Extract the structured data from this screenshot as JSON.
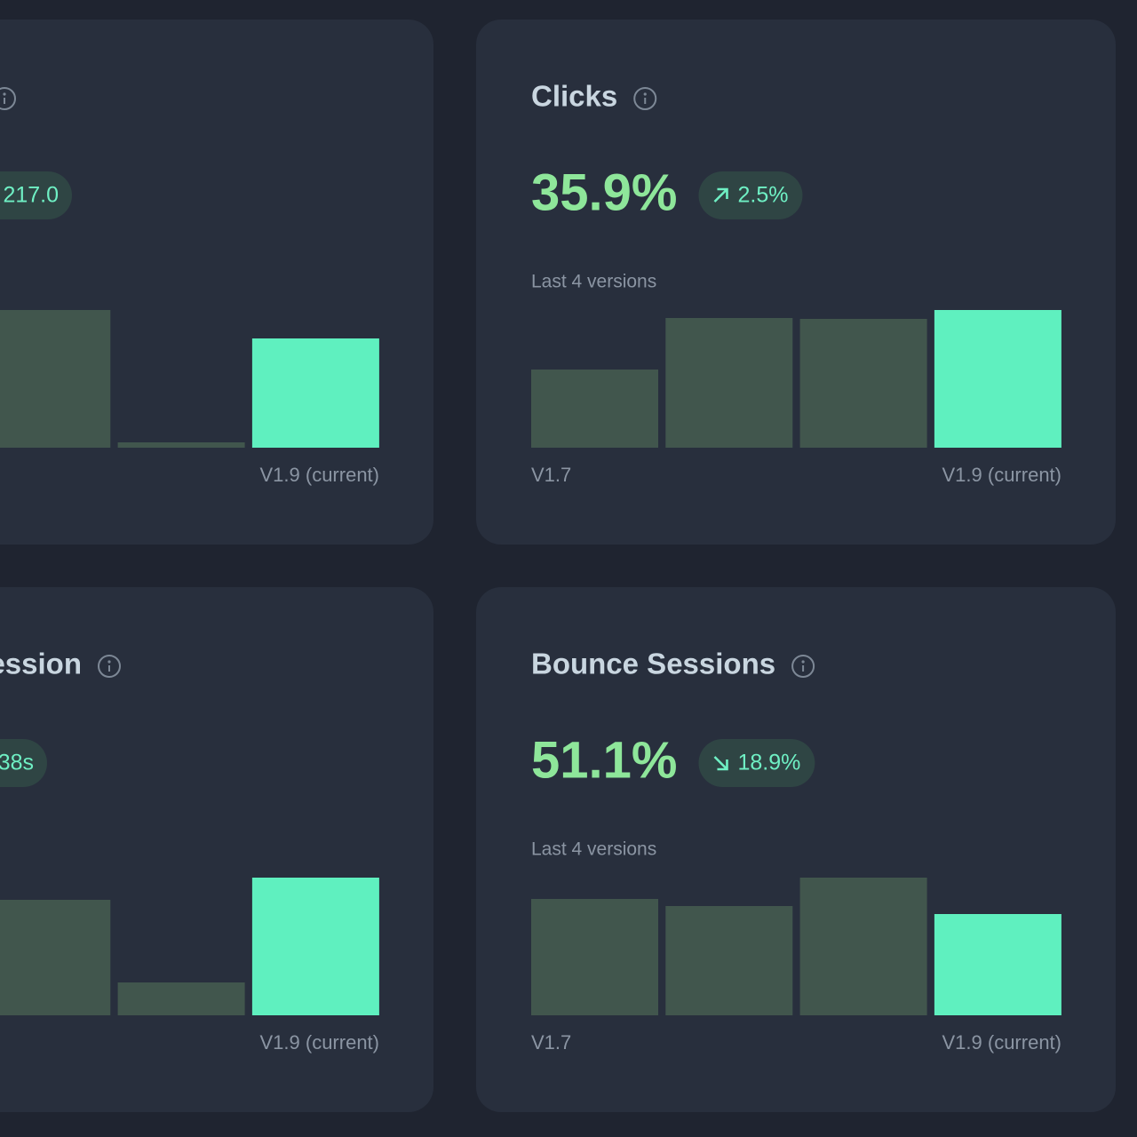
{
  "cards": [
    {
      "badge": "217.0",
      "bars": {
        "values": [
          null,
          155,
          6,
          123
        ]
      },
      "last_label": "V1.9 (current)"
    },
    {
      "title": "Clicks",
      "value": "35.9%",
      "badge": "2.5%",
      "trend": "up",
      "subtitle": "Last 4 versions",
      "bars": {
        "values": [
          88,
          146,
          145,
          155
        ]
      },
      "first_label": "V1.7",
      "last_label": "V1.9 (current)"
    },
    {
      "title": "ession",
      "badge": "38s",
      "bars": {
        "values": [
          null,
          130,
          37,
          155
        ]
      },
      "last_label": "V1.9 (current)"
    },
    {
      "title": "Bounce Sessions",
      "value": "51.1%",
      "badge": "18.9%",
      "trend": "down",
      "subtitle": "Last 4 versions",
      "bars": {
        "values": [
          131,
          123,
          155,
          114
        ]
      },
      "first_label": "V1.7",
      "last_label": "V1.9 (current)"
    }
  ],
  "bar_ylim": [
    0,
    160
  ],
  "colors": {
    "bar": "#41564d",
    "current_bar": "#5ff0bf"
  }
}
